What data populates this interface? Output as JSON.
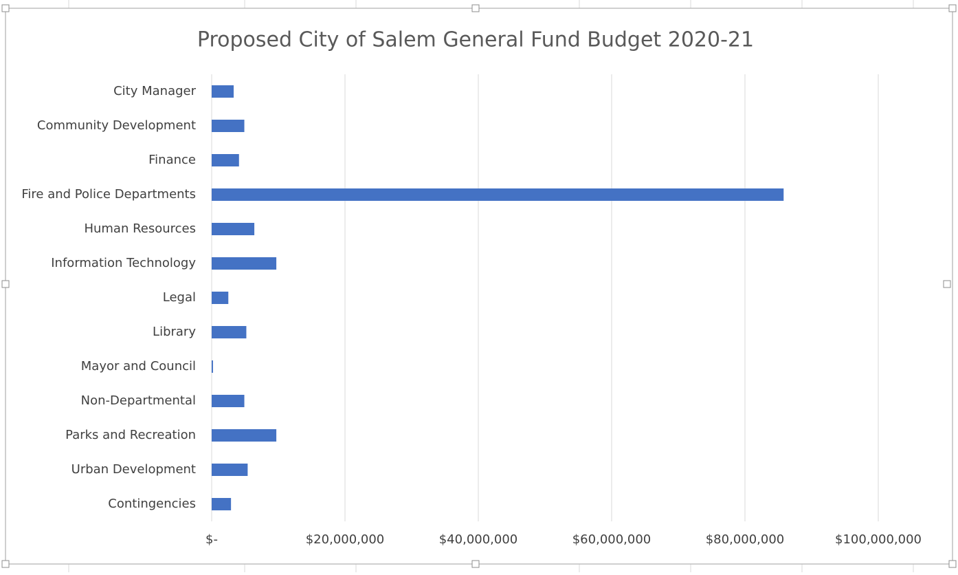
{
  "chart_data": {
    "type": "bar",
    "orientation": "horizontal",
    "title": "Proposed City of Salem General Fund Budget 2020-21",
    "categories": [
      "City Manager",
      "Community Development",
      "Finance",
      "Fire and Police Departments",
      "Human Resources",
      "Information Technology",
      "Legal",
      "Library",
      "Mayor and Council",
      "Non-Departmental",
      "Parks and Recreation",
      "Urban Development",
      "Contingencies"
    ],
    "values": [
      3300000,
      4900000,
      4100000,
      85800000,
      6400000,
      9700000,
      2500000,
      5200000,
      200000,
      4900000,
      9700000,
      5400000,
      2900000
    ],
    "color": "#4472c4",
    "xlim": [
      0,
      100000000
    ],
    "xticks": [
      {
        "value": 0,
        "label": "$-"
      },
      {
        "value": 20000000,
        "label": "$20,000,000"
      },
      {
        "value": 40000000,
        "label": "$40,000,000"
      },
      {
        "value": 60000000,
        "label": "$60,000,000"
      },
      {
        "value": 80000000,
        "label": "$80,000,000"
      },
      {
        "value": 100000000,
        "label": "$100,000,000"
      }
    ],
    "grid": true
  }
}
